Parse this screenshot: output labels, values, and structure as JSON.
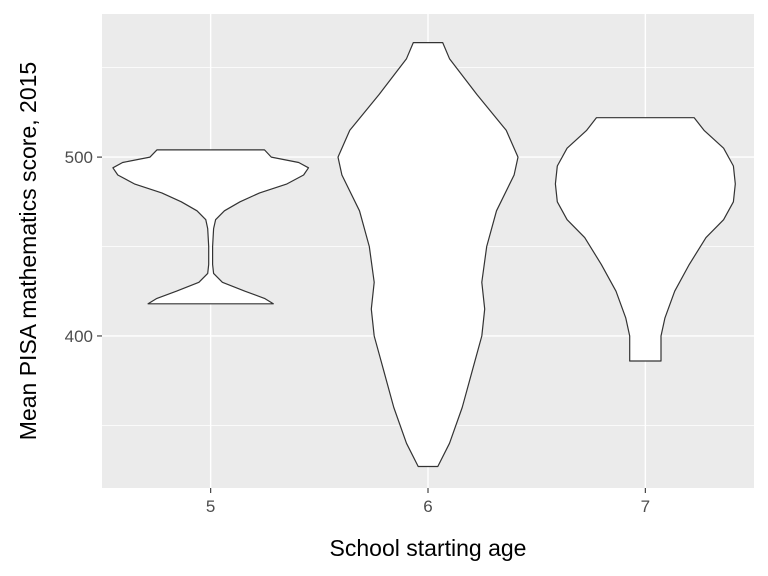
{
  "chart_data": {
    "type": "violin",
    "xlabel": "School starting age",
    "ylabel": "Mean PISA mathematics score, 2015",
    "categories": [
      "5",
      "6",
      "7"
    ],
    "yticks": [
      400,
      500
    ],
    "ylim": [
      315,
      580
    ],
    "grid": true,
    "panel_color": "#ebebeb",
    "violins": [
      {
        "category": "5",
        "min": 418,
        "max": 504,
        "profile": [
          [
            418,
            0.64
          ],
          [
            421,
            0.55
          ],
          [
            425,
            0.35
          ],
          [
            430,
            0.12
          ],
          [
            435,
            0.03
          ],
          [
            440,
            0.02
          ],
          [
            450,
            0.02
          ],
          [
            460,
            0.03
          ],
          [
            465,
            0.05
          ],
          [
            470,
            0.14
          ],
          [
            475,
            0.3
          ],
          [
            480,
            0.5
          ],
          [
            485,
            0.78
          ],
          [
            490,
            0.95
          ],
          [
            494,
            1.0
          ],
          [
            497,
            0.9
          ],
          [
            500,
            0.62
          ],
          [
            504,
            0.55
          ]
        ]
      },
      {
        "category": "6",
        "min": 327,
        "max": 564,
        "profile": [
          [
            327,
            0.1
          ],
          [
            340,
            0.22
          ],
          [
            360,
            0.35
          ],
          [
            380,
            0.45
          ],
          [
            400,
            0.55
          ],
          [
            415,
            0.58
          ],
          [
            430,
            0.55
          ],
          [
            450,
            0.6
          ],
          [
            470,
            0.7
          ],
          [
            490,
            0.88
          ],
          [
            500,
            0.92
          ],
          [
            515,
            0.8
          ],
          [
            535,
            0.5
          ],
          [
            555,
            0.22
          ],
          [
            564,
            0.15
          ]
        ]
      },
      {
        "category": "7",
        "min": 386,
        "max": 522,
        "profile": [
          [
            386,
            0.16
          ],
          [
            400,
            0.16
          ],
          [
            410,
            0.2
          ],
          [
            425,
            0.3
          ],
          [
            440,
            0.45
          ],
          [
            455,
            0.62
          ],
          [
            465,
            0.8
          ],
          [
            475,
            0.9
          ],
          [
            485,
            0.92
          ],
          [
            495,
            0.9
          ],
          [
            505,
            0.8
          ],
          [
            515,
            0.6
          ],
          [
            522,
            0.5
          ]
        ]
      }
    ]
  }
}
